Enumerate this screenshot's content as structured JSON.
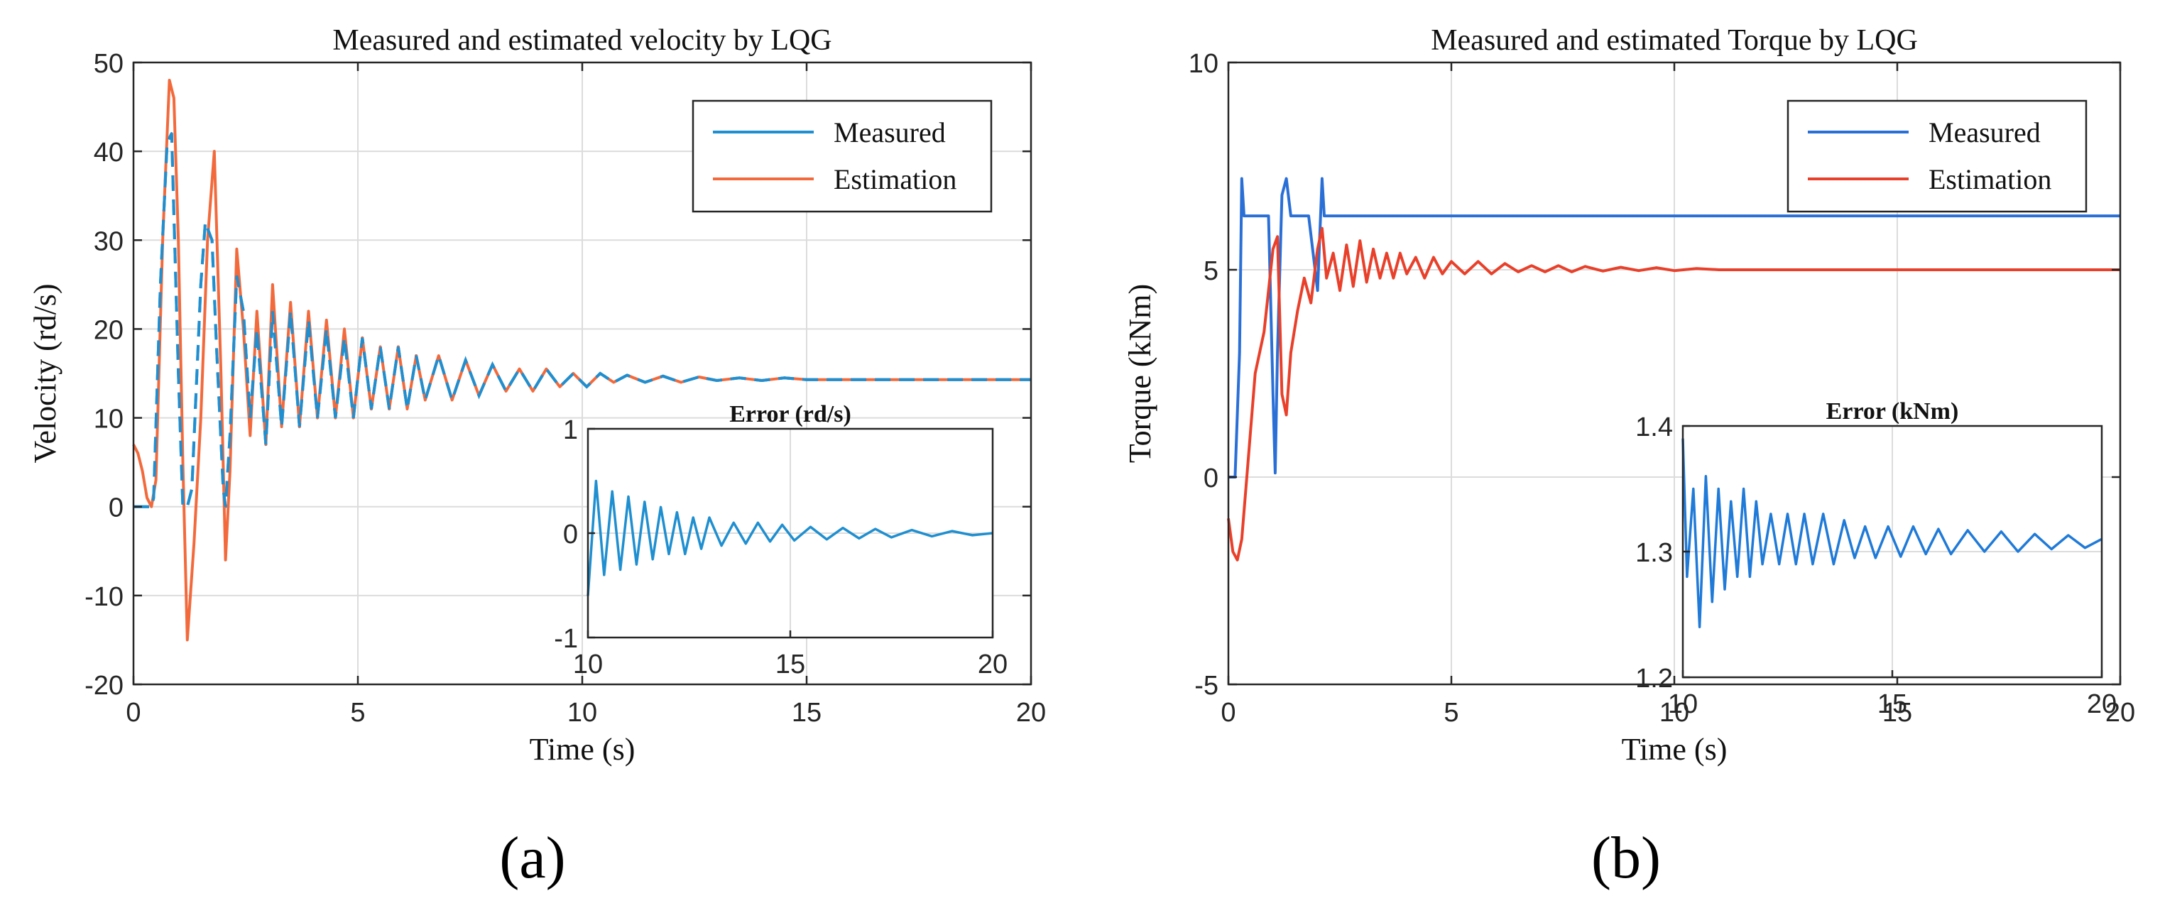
{
  "chart_data": [
    {
      "type": "line",
      "id": "a",
      "caption": "(a)",
      "title": "Measured and estimated velocity by LQG",
      "xlabel": "Time (s)",
      "ylabel": "Velocity (rd/s)",
      "xlim": [
        0,
        20
      ],
      "ylim": [
        -20,
        50
      ],
      "xticks": [
        0,
        5,
        10,
        15,
        20
      ],
      "yticks": [
        -20,
        -10,
        0,
        10,
        20,
        30,
        40,
        50
      ],
      "grid": true,
      "legend": {
        "placement": "top-right",
        "entries": [
          "Measured",
          "Estimation"
        ]
      },
      "series": [
        {
          "name": "Measured",
          "color": "#1f8fd0",
          "style": "dashed",
          "x": [
            0,
            0.4,
            0.45,
            0.6,
            0.75,
            0.85,
            1.0,
            1.1,
            1.2,
            1.3,
            1.5,
            1.6,
            1.75,
            1.85,
            2.0,
            2.05,
            2.15,
            2.3,
            2.45,
            2.6,
            2.75,
            2.95,
            3.1,
            3.3,
            3.5,
            3.7,
            3.9,
            4.1,
            4.3,
            4.5,
            4.7,
            4.9,
            5.1,
            5.3,
            5.5,
            5.7,
            5.9,
            6.1,
            6.3,
            6.5,
            6.8,
            7.1,
            7.4,
            7.7,
            8.0,
            8.3,
            8.6,
            8.9,
            9.2,
            9.5,
            9.8,
            10.1,
            10.4,
            10.7,
            11.0,
            11.4,
            11.8,
            12.2,
            12.6,
            13.0,
            13.5,
            14.0,
            14.5,
            15.0,
            16,
            17,
            18,
            19,
            20
          ],
          "y": [
            0,
            0,
            1,
            25,
            41,
            42,
            15,
            0,
            0,
            2,
            25,
            32,
            30,
            18,
            2,
            0,
            8,
            26,
            22,
            10,
            20,
            7,
            22,
            9,
            22,
            9,
            21,
            10,
            20,
            10,
            19,
            10,
            19,
            11,
            18,
            11,
            18,
            11,
            17,
            12,
            17,
            12,
            16.5,
            12.5,
            16,
            13,
            15.5,
            13,
            15.5,
            13.5,
            15,
            13.5,
            15,
            14,
            14.8,
            14,
            14.7,
            14,
            14.6,
            14.2,
            14.5,
            14.2,
            14.5,
            14.3,
            14.3,
            14.3,
            14.3,
            14.3,
            14.3
          ]
        },
        {
          "name": "Estimation",
          "color": "#f26a3c",
          "style": "solid",
          "x": [
            0,
            0.1,
            0.2,
            0.3,
            0.4,
            0.5,
            0.65,
            0.8,
            0.9,
            1.0,
            1.1,
            1.2,
            1.35,
            1.5,
            1.65,
            1.8,
            1.95,
            2.05,
            2.15,
            2.3,
            2.45,
            2.6,
            2.75,
            2.95,
            3.1,
            3.3,
            3.5,
            3.7,
            3.9,
            4.1,
            4.3,
            4.5,
            4.7,
            4.9,
            5.1,
            5.3,
            5.5,
            5.7,
            5.9,
            6.1,
            6.3,
            6.5,
            6.8,
            7.1,
            7.4,
            7.7,
            8.0,
            8.3,
            8.6,
            8.9,
            9.2,
            9.5,
            9.8,
            10.1,
            10.4,
            10.7,
            11.0,
            11.4,
            11.8,
            12.2,
            12.6,
            13.0,
            13.5,
            14.0,
            14.5,
            15.0,
            16,
            17,
            18,
            19,
            20
          ],
          "y": [
            7,
            6,
            4,
            1,
            0,
            3,
            30,
            48,
            46,
            30,
            5,
            -15,
            -4,
            10,
            30,
            40,
            15,
            -6,
            4,
            29,
            20,
            8,
            22,
            7,
            25,
            9,
            23,
            9,
            22,
            10,
            21,
            10,
            20,
            10,
            19,
            11,
            18,
            11,
            18,
            11,
            17,
            12,
            17,
            12,
            16.5,
            12.5,
            16,
            13,
            15.5,
            13,
            15.5,
            13.5,
            15,
            13.5,
            15,
            14,
            14.8,
            14,
            14.7,
            14,
            14.6,
            14.2,
            14.5,
            14.2,
            14.5,
            14.3,
            14.3,
            14.3,
            14.3,
            14.3,
            14.3
          ]
        }
      ],
      "inset": {
        "title": "Error (rd/s)",
        "xlim": [
          10,
          20
        ],
        "ylim": [
          -1,
          1
        ],
        "xticks": [
          10,
          15,
          20
        ],
        "yticks": [
          -1,
          0,
          1
        ],
        "series": [
          {
            "color": "#1f8fd0",
            "x": [
              10,
              10.2,
              10.4,
              10.6,
              10.8,
              11.0,
              11.2,
              11.4,
              11.6,
              11.8,
              12.0,
              12.2,
              12.4,
              12.6,
              12.8,
              13.0,
              13.3,
              13.6,
              13.9,
              14.2,
              14.5,
              14.8,
              15.1,
              15.5,
              15.9,
              16.3,
              16.7,
              17.1,
              17.5,
              18,
              18.5,
              19,
              19.5,
              20
            ],
            "y": [
              -0.6,
              0.5,
              -0.4,
              0.4,
              -0.35,
              0.35,
              -0.3,
              0.3,
              -0.25,
              0.25,
              -0.2,
              0.2,
              -0.2,
              0.15,
              -0.15,
              0.15,
              -0.12,
              0.1,
              -0.1,
              0.1,
              -0.08,
              0.08,
              -0.07,
              0.06,
              -0.06,
              0.05,
              -0.05,
              0.04,
              -0.04,
              0.03,
              -0.03,
              0.02,
              -0.02,
              0.0
            ]
          }
        ]
      }
    },
    {
      "type": "line",
      "id": "b",
      "caption": "(b)",
      "title": "Measured and estimated Torque by LQG",
      "xlabel": "Time (s)",
      "ylabel": "Torque (kNm)",
      "xlim": [
        0,
        20
      ],
      "ylim": [
        -5,
        10
      ],
      "xticks": [
        0,
        5,
        10,
        15,
        20
      ],
      "yticks": [
        -5,
        0,
        5,
        10
      ],
      "grid": true,
      "legend": {
        "placement": "top-right",
        "entries": [
          "Measured",
          "Estimation"
        ]
      },
      "series": [
        {
          "name": "Measured",
          "color": "#2a6fd6",
          "style": "solid",
          "x": [
            0,
            0.15,
            0.25,
            0.3,
            0.35,
            0.4,
            0.45,
            0.9,
            1.0,
            1.05,
            1.1,
            1.2,
            1.3,
            1.4,
            1.5,
            1.6,
            1.7,
            1.8,
            2.0,
            2.1,
            2.15,
            2.2,
            2.3,
            20
          ],
          "y": [
            0,
            0,
            3,
            7.2,
            6.3,
            6.3,
            6.3,
            6.3,
            2,
            0.1,
            3,
            6.8,
            7.2,
            6.3,
            6.3,
            6.3,
            6.3,
            6.3,
            4.5,
            7.2,
            6.3,
            6.3,
            6.3,
            6.3
          ]
        },
        {
          "name": "Estimation",
          "color": "#e8402a",
          "style": "solid",
          "x": [
            0,
            0.1,
            0.2,
            0.3,
            0.45,
            0.6,
            0.8,
            1.0,
            1.1,
            1.2,
            1.3,
            1.4,
            1.55,
            1.7,
            1.85,
            2.0,
            2.1,
            2.2,
            2.35,
            2.5,
            2.65,
            2.8,
            2.95,
            3.1,
            3.25,
            3.4,
            3.55,
            3.7,
            3.85,
            4.0,
            4.2,
            4.4,
            4.6,
            4.8,
            5.0,
            5.3,
            5.6,
            5.9,
            6.2,
            6.5,
            6.8,
            7.1,
            7.4,
            7.7,
            8.0,
            8.4,
            8.8,
            9.2,
            9.6,
            10.0,
            10.5,
            11,
            12,
            13,
            14,
            15,
            16,
            17,
            18,
            19,
            20
          ],
          "y": [
            -1,
            -1.8,
            -2,
            -1.5,
            0.5,
            2.5,
            3.5,
            5.5,
            5.8,
            2,
            1.5,
            3,
            4,
            4.8,
            4.2,
            5.5,
            6.0,
            4.8,
            5.4,
            4.5,
            5.6,
            4.6,
            5.7,
            4.7,
            5.5,
            4.8,
            5.4,
            4.8,
            5.4,
            4.9,
            5.3,
            4.8,
            5.3,
            4.9,
            5.2,
            4.9,
            5.2,
            4.9,
            5.15,
            4.95,
            5.1,
            4.95,
            5.1,
            4.95,
            5.08,
            4.97,
            5.06,
            4.98,
            5.05,
            4.98,
            5.03,
            5.0,
            5.0,
            5.0,
            5.0,
            5.0,
            5.0,
            5.0,
            5.0,
            5.0,
            5.0
          ]
        }
      ],
      "inset": {
        "title": "Error (kNm)",
        "xlim": [
          10,
          20
        ],
        "ylim": [
          1.2,
          1.4
        ],
        "xticks": [
          10,
          15,
          20
        ],
        "yticks": [
          1.2,
          1.3,
          1.4
        ],
        "series": [
          {
            "color": "#1f7ad8",
            "x": [
              10,
              10.1,
              10.25,
              10.4,
              10.55,
              10.7,
              10.85,
              11.0,
              11.15,
              11.3,
              11.45,
              11.6,
              11.75,
              11.9,
              12.1,
              12.3,
              12.5,
              12.7,
              12.9,
              13.1,
              13.35,
              13.6,
              13.85,
              14.1,
              14.35,
              14.6,
              14.9,
              15.2,
              15.5,
              15.8,
              16.1,
              16.4,
              16.8,
              17.2,
              17.6,
              18,
              18.4,
              18.8,
              19.2,
              19.6,
              20
            ],
            "y": [
              1.39,
              1.28,
              1.35,
              1.24,
              1.36,
              1.26,
              1.35,
              1.27,
              1.34,
              1.28,
              1.35,
              1.28,
              1.34,
              1.29,
              1.33,
              1.29,
              1.33,
              1.29,
              1.33,
              1.29,
              1.33,
              1.29,
              1.325,
              1.295,
              1.32,
              1.295,
              1.32,
              1.296,
              1.32,
              1.298,
              1.318,
              1.298,
              1.317,
              1.3,
              1.316,
              1.3,
              1.314,
              1.302,
              1.313,
              1.303,
              1.31
            ]
          }
        ]
      }
    }
  ]
}
